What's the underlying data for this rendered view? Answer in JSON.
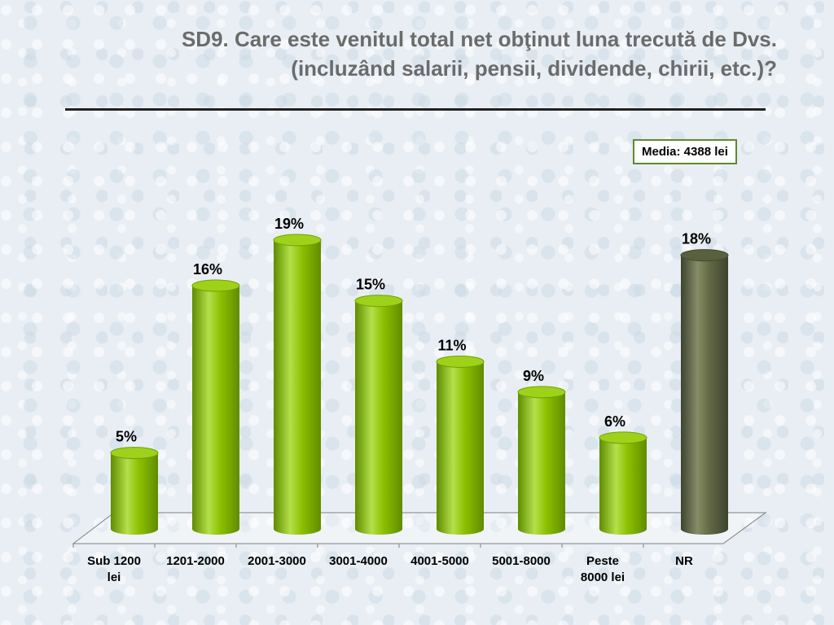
{
  "title": {
    "line1": "SD9. Care este venitul  total net obţinut luna trecută de Dvs.",
    "line2": "(incluzând salarii, pensii, dividende, chirii, etc.)?"
  },
  "annotation": {
    "media": "Media: 4388 lei"
  },
  "colors": {
    "green": "#8cc000",
    "green_dark": "#5f8c00",
    "nr": "#636a44",
    "nr_dark": "#3e4330"
  },
  "chart_data": {
    "type": "bar",
    "title": "",
    "xlabel": "",
    "ylabel": "",
    "ylim": [
      0,
      20
    ],
    "grid": false,
    "categories": [
      [
        "Sub 1200",
        "lei"
      ],
      [
        "1201-2000"
      ],
      [
        "2001-3000"
      ],
      [
        "3001-4000"
      ],
      [
        "4001-5000"
      ],
      [
        "5001-8000"
      ],
      [
        "Peste",
        "8000 lei"
      ],
      [
        "NR"
      ]
    ],
    "values": [
      5,
      16,
      19,
      15,
      11,
      9,
      6,
      18
    ],
    "data_labels": [
      "5%",
      "16%",
      "19%",
      "15%",
      "11%",
      "9%",
      "6%",
      "18%"
    ],
    "highlight_category_index": 7
  }
}
